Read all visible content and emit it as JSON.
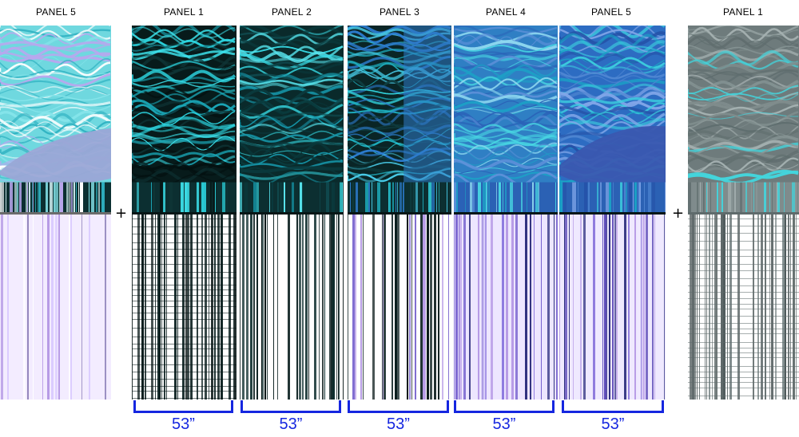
{
  "panels": [
    {
      "label": "PANEL 5",
      "variant": "partial-left",
      "top_color": "#4fd3dc",
      "stripe_color": "#b79be6",
      "bottom_bg": "#f3ecff"
    },
    {
      "label": "PANEL 1",
      "variant": "dark",
      "top_color": "#0b2b2b",
      "stripe_color": "#0a1f1f",
      "bottom_bg": "#ffffff"
    },
    {
      "label": "PANEL 2",
      "variant": "dark-cyan",
      "top_color": "#0d3b3c",
      "stripe_color": "#0a1f1f",
      "bottom_bg": "#ffffff"
    },
    {
      "label": "PANEL 3",
      "variant": "split",
      "top_color": "#1597a6",
      "stripe_color": "#0a1f1f",
      "bottom_bg": "#ffffff"
    },
    {
      "label": "PANEL 4",
      "variant": "blue",
      "top_color": "#2c86c8",
      "stripe_color": "#6a54c9",
      "bottom_bg": "#ede6ff"
    },
    {
      "label": "PANEL 5",
      "variant": "blue-shape",
      "top_color": "#2f6fbf",
      "stripe_color": "#7a63d6",
      "bottom_bg": "#efe9ff"
    },
    {
      "label": "PANEL 1",
      "variant": "gray",
      "top_color": "#6f7f80",
      "stripe_color": "#6a7474",
      "bottom_bg": "#ffffff"
    }
  ],
  "plus": {
    "left": "+",
    "right": "+"
  },
  "dimensions": [
    "53”",
    "53”",
    "53”",
    "53”",
    "53”"
  ],
  "colors": {
    "dimension": "#1526e0",
    "label": "#000000"
  }
}
